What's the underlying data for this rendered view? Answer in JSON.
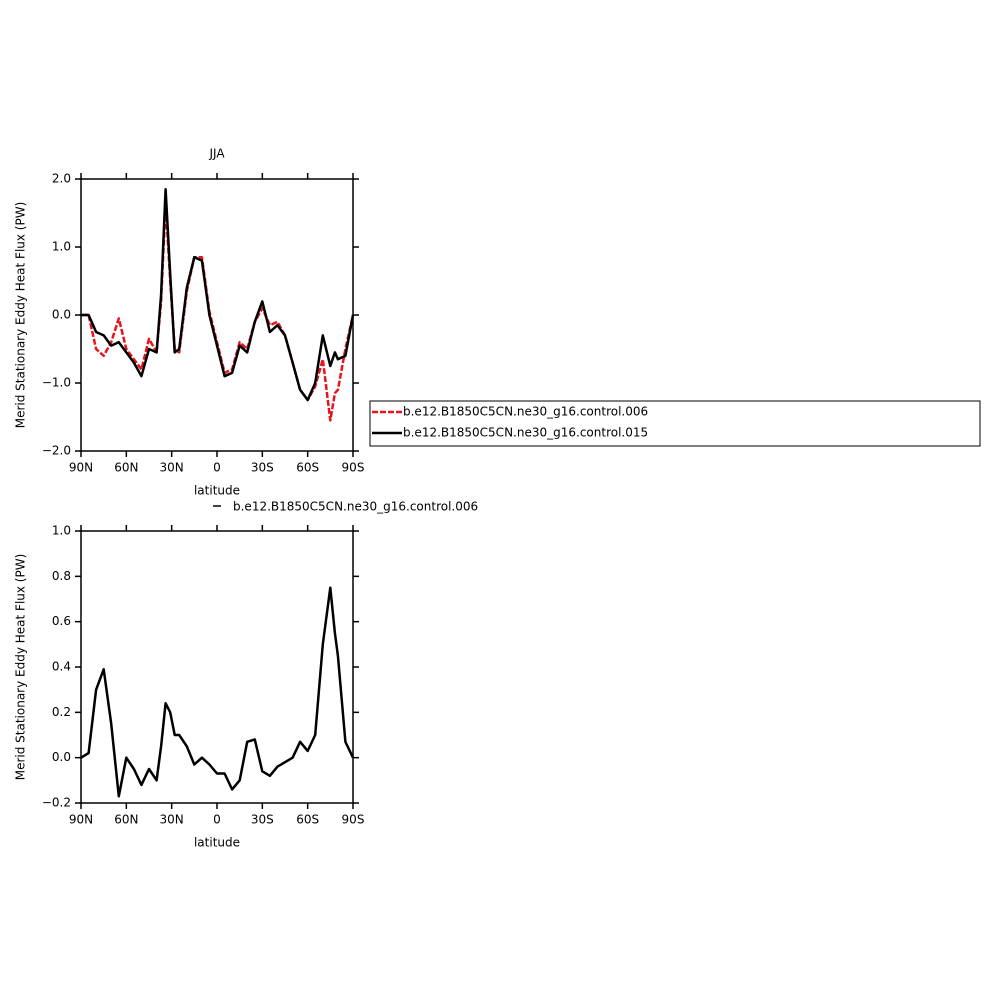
{
  "chart_data": [
    {
      "type": "line",
      "title": "JJA",
      "y_label": "Merid Stationary Eddy Heat Flux (PW)",
      "x_label": "latitude",
      "xlim": [
        90,
        -90
      ],
      "xticks": [
        {
          "value": 90,
          "label": "90N"
        },
        {
          "value": 60,
          "label": "60N"
        },
        {
          "value": 30,
          "label": "30N"
        },
        0,
        {
          "value": -30,
          "label": "30S"
        },
        {
          "value": -60,
          "label": "60S"
        },
        {
          "value": -90,
          "label": "90S"
        }
      ],
      "ylim": [
        -2,
        2
      ],
      "yticks": [
        {
          "value": -2,
          "label": "−2.0"
        },
        {
          "value": -1,
          "label": "−1.0"
        },
        {
          "value": 0,
          "label": "0.0"
        },
        {
          "value": 1,
          "label": "1.0"
        },
        {
          "value": 2,
          "label": "2.0"
        }
      ],
      "x": [
        90,
        85,
        80,
        75,
        70,
        65,
        60,
        55,
        50,
        45,
        40,
        37,
        34,
        31,
        28,
        25,
        20,
        15,
        10,
        5,
        0,
        -5,
        -10,
        -15,
        -20,
        -25,
        -30,
        -35,
        -40,
        -45,
        -50,
        -55,
        -60,
        -65,
        -70,
        -75,
        -78,
        -80,
        -85,
        -90
      ],
      "series": [
        {
          "name": "b.e12.B1850C5CN.ne30_g16.control.006",
          "color": "#e8141c",
          "dashed": true,
          "values": [
            0,
            0,
            -0.5,
            -0.6,
            -0.4,
            -0.05,
            -0.5,
            -0.65,
            -0.8,
            -0.35,
            -0.55,
            0.2,
            1.65,
            0.5,
            -0.5,
            -0.55,
            0.35,
            0.85,
            0.85,
            0.05,
            -0.4,
            -0.85,
            -0.8,
            -0.4,
            -0.5,
            -0.1,
            0.1,
            -0.15,
            -0.1,
            -0.3,
            -0.7,
            -1.1,
            -1.25,
            -1.05,
            -0.65,
            -1.55,
            -1.15,
            -1.1,
            -0.5,
            0
          ]
        },
        {
          "name": "b.e12.B1850C5CN.ne30_g16.control.015",
          "color": "#000000",
          "dashed": false,
          "values": [
            0,
            0,
            -0.25,
            -0.3,
            -0.45,
            -0.4,
            -0.55,
            -0.7,
            -0.9,
            -0.5,
            -0.55,
            0.3,
            1.85,
            0.6,
            -0.55,
            -0.5,
            0.4,
            0.85,
            0.8,
            0,
            -0.45,
            -0.9,
            -0.85,
            -0.45,
            -0.55,
            -0.1,
            0.2,
            -0.25,
            -0.15,
            -0.3,
            -0.7,
            -1.1,
            -1.25,
            -1,
            -0.3,
            -0.75,
            -0.55,
            -0.65,
            -0.6,
            0
          ]
        }
      ]
    },
    {
      "type": "line",
      "title": "b.e12.B1850C5CN.ne30_g16.control.006",
      "y_label": "Merid Stationary Eddy Heat Flux (PW)",
      "x_label": "latitude",
      "xlim": [
        90,
        -90
      ],
      "xticks": [
        {
          "value": 90,
          "label": "90N"
        },
        {
          "value": 60,
          "label": "60N"
        },
        {
          "value": 30,
          "label": "30N"
        },
        0,
        {
          "value": -30,
          "label": "30S"
        },
        {
          "value": -60,
          "label": "60S"
        },
        {
          "value": -90,
          "label": "90S"
        }
      ],
      "ylim": [
        -0.2,
        1
      ],
      "yticks": [
        {
          "value": -0.2,
          "label": "−0.2"
        },
        {
          "value": 0,
          "label": "0.0"
        },
        0.2,
        0.4,
        0.6,
        0.8,
        {
          "value": 1,
          "label": "1.0"
        }
      ],
      "x": [
        90,
        85,
        80,
        75,
        70,
        65,
        60,
        55,
        50,
        45,
        40,
        37,
        34,
        31,
        28,
        25,
        20,
        15,
        10,
        5,
        0,
        -5,
        -10,
        -15,
        -20,
        -25,
        -30,
        -35,
        -40,
        -45,
        -50,
        -55,
        -60,
        -65,
        -70,
        -75,
        -78,
        -80,
        -85,
        -90
      ],
      "series": [
        {
          "color": "#000000",
          "values": [
            0,
            0.02,
            0.3,
            0.39,
            0.15,
            -0.17,
            0,
            -0.05,
            -0.12,
            -0.05,
            -0.1,
            0.05,
            0.24,
            0.2,
            0.1,
            0.1,
            0.05,
            -0.03,
            0,
            -0.03,
            -0.07,
            -0.07,
            -0.14,
            -0.1,
            0.07,
            0.08,
            -0.06,
            -0.08,
            -0.04,
            -0.02,
            0,
            0.07,
            0.03,
            0.1,
            0.5,
            0.75,
            0.55,
            0.45,
            0.07,
            0
          ]
        }
      ]
    }
  ]
}
